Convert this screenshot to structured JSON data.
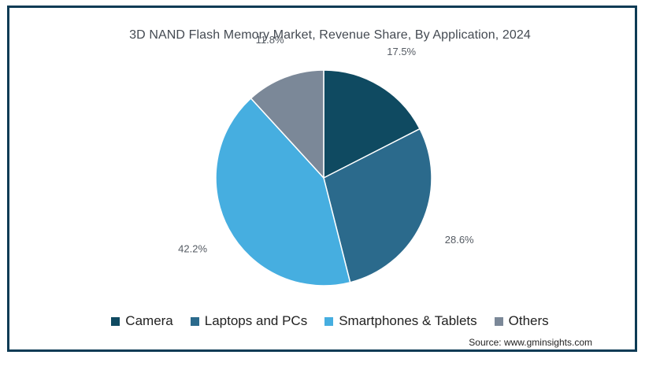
{
  "chart_data": {
    "type": "pie",
    "title": "3D NAND Flash Memory Market, Revenue Share, By Application, 2024",
    "categories": [
      "Camera",
      "Laptops and PCs",
      "Smartphones & Tablets",
      "Others"
    ],
    "values": [
      17.5,
      28.6,
      42.2,
      11.8
    ],
    "labels": [
      "17.5%",
      "28.6%",
      "42.2%",
      "11.8%"
    ],
    "colors": [
      "#0f4a61",
      "#2b6a8c",
      "#46aee0",
      "#7b8898"
    ],
    "legend_position": "bottom",
    "source": "Source: www.gminsights.com"
  }
}
